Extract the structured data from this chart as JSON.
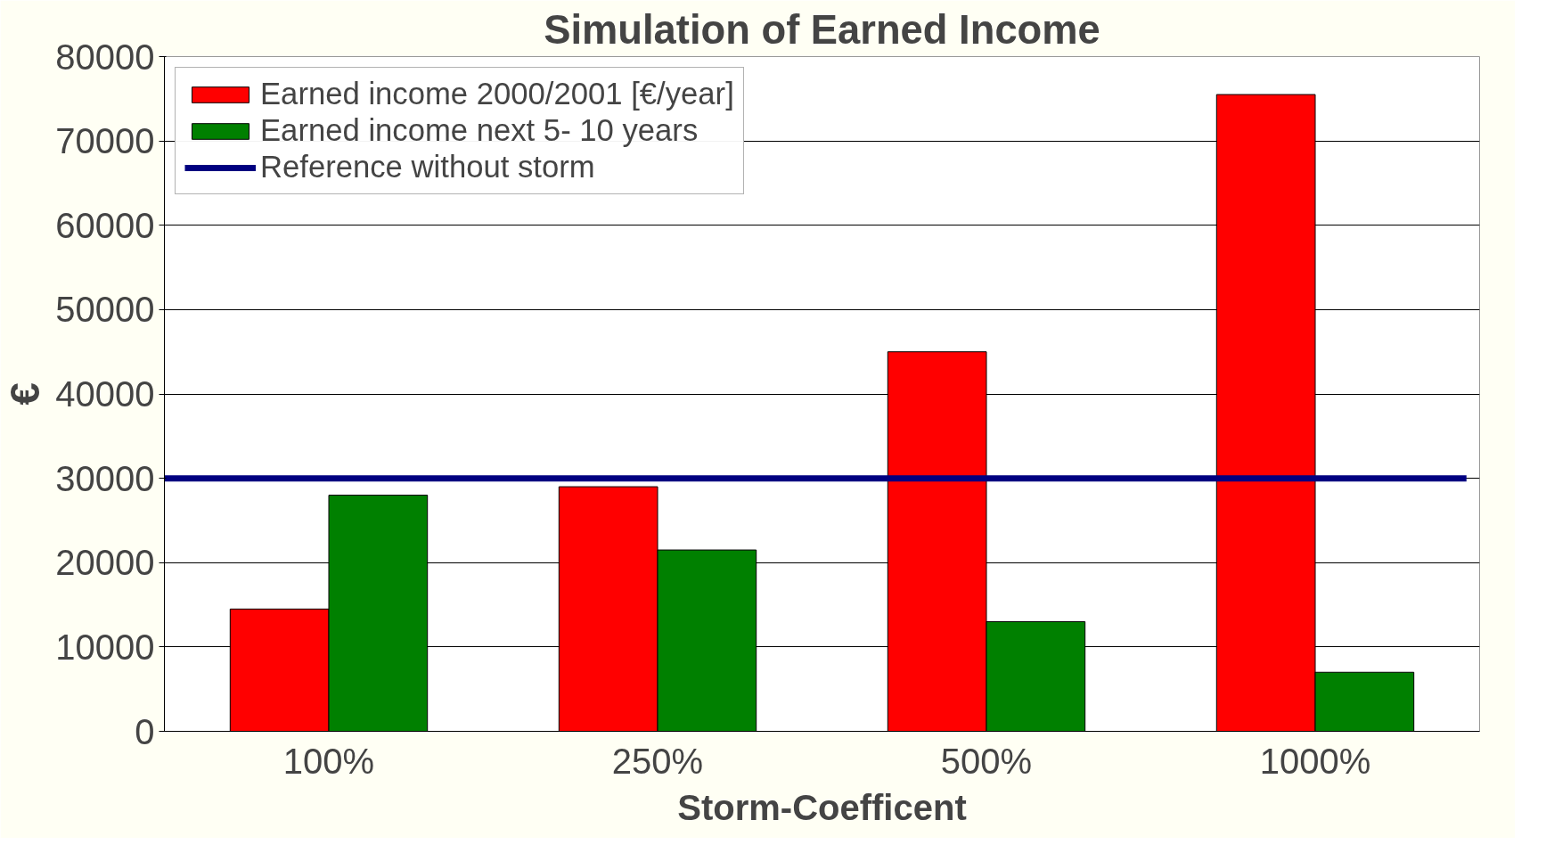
{
  "chart_data": {
    "type": "bar",
    "title": "Simulation of Earned Income",
    "xlabel": "Storm-Coefficent",
    "ylabel": "€",
    "categories": [
      "100%",
      "250%",
      "500%",
      "1000%"
    ],
    "series": [
      {
        "name": "Earned income 2000/2001 [€/year]",
        "color": "#ff0000",
        "values": [
          14500,
          29000,
          45000,
          75500
        ]
      },
      {
        "name": "Earned income next 5- 10 years",
        "color": "#008000",
        "values": [
          28000,
          21500,
          13000,
          7000
        ]
      }
    ],
    "ref_lines": [
      {
        "axis": "y",
        "value": 30000,
        "label": "Reference without storm",
        "color": "#000080"
      }
    ],
    "ylim": [
      0,
      80000
    ],
    "yticks": [
      0,
      10000,
      20000,
      30000,
      40000,
      50000,
      60000,
      70000,
      80000
    ],
    "grid": "y",
    "legend": "top left"
  }
}
